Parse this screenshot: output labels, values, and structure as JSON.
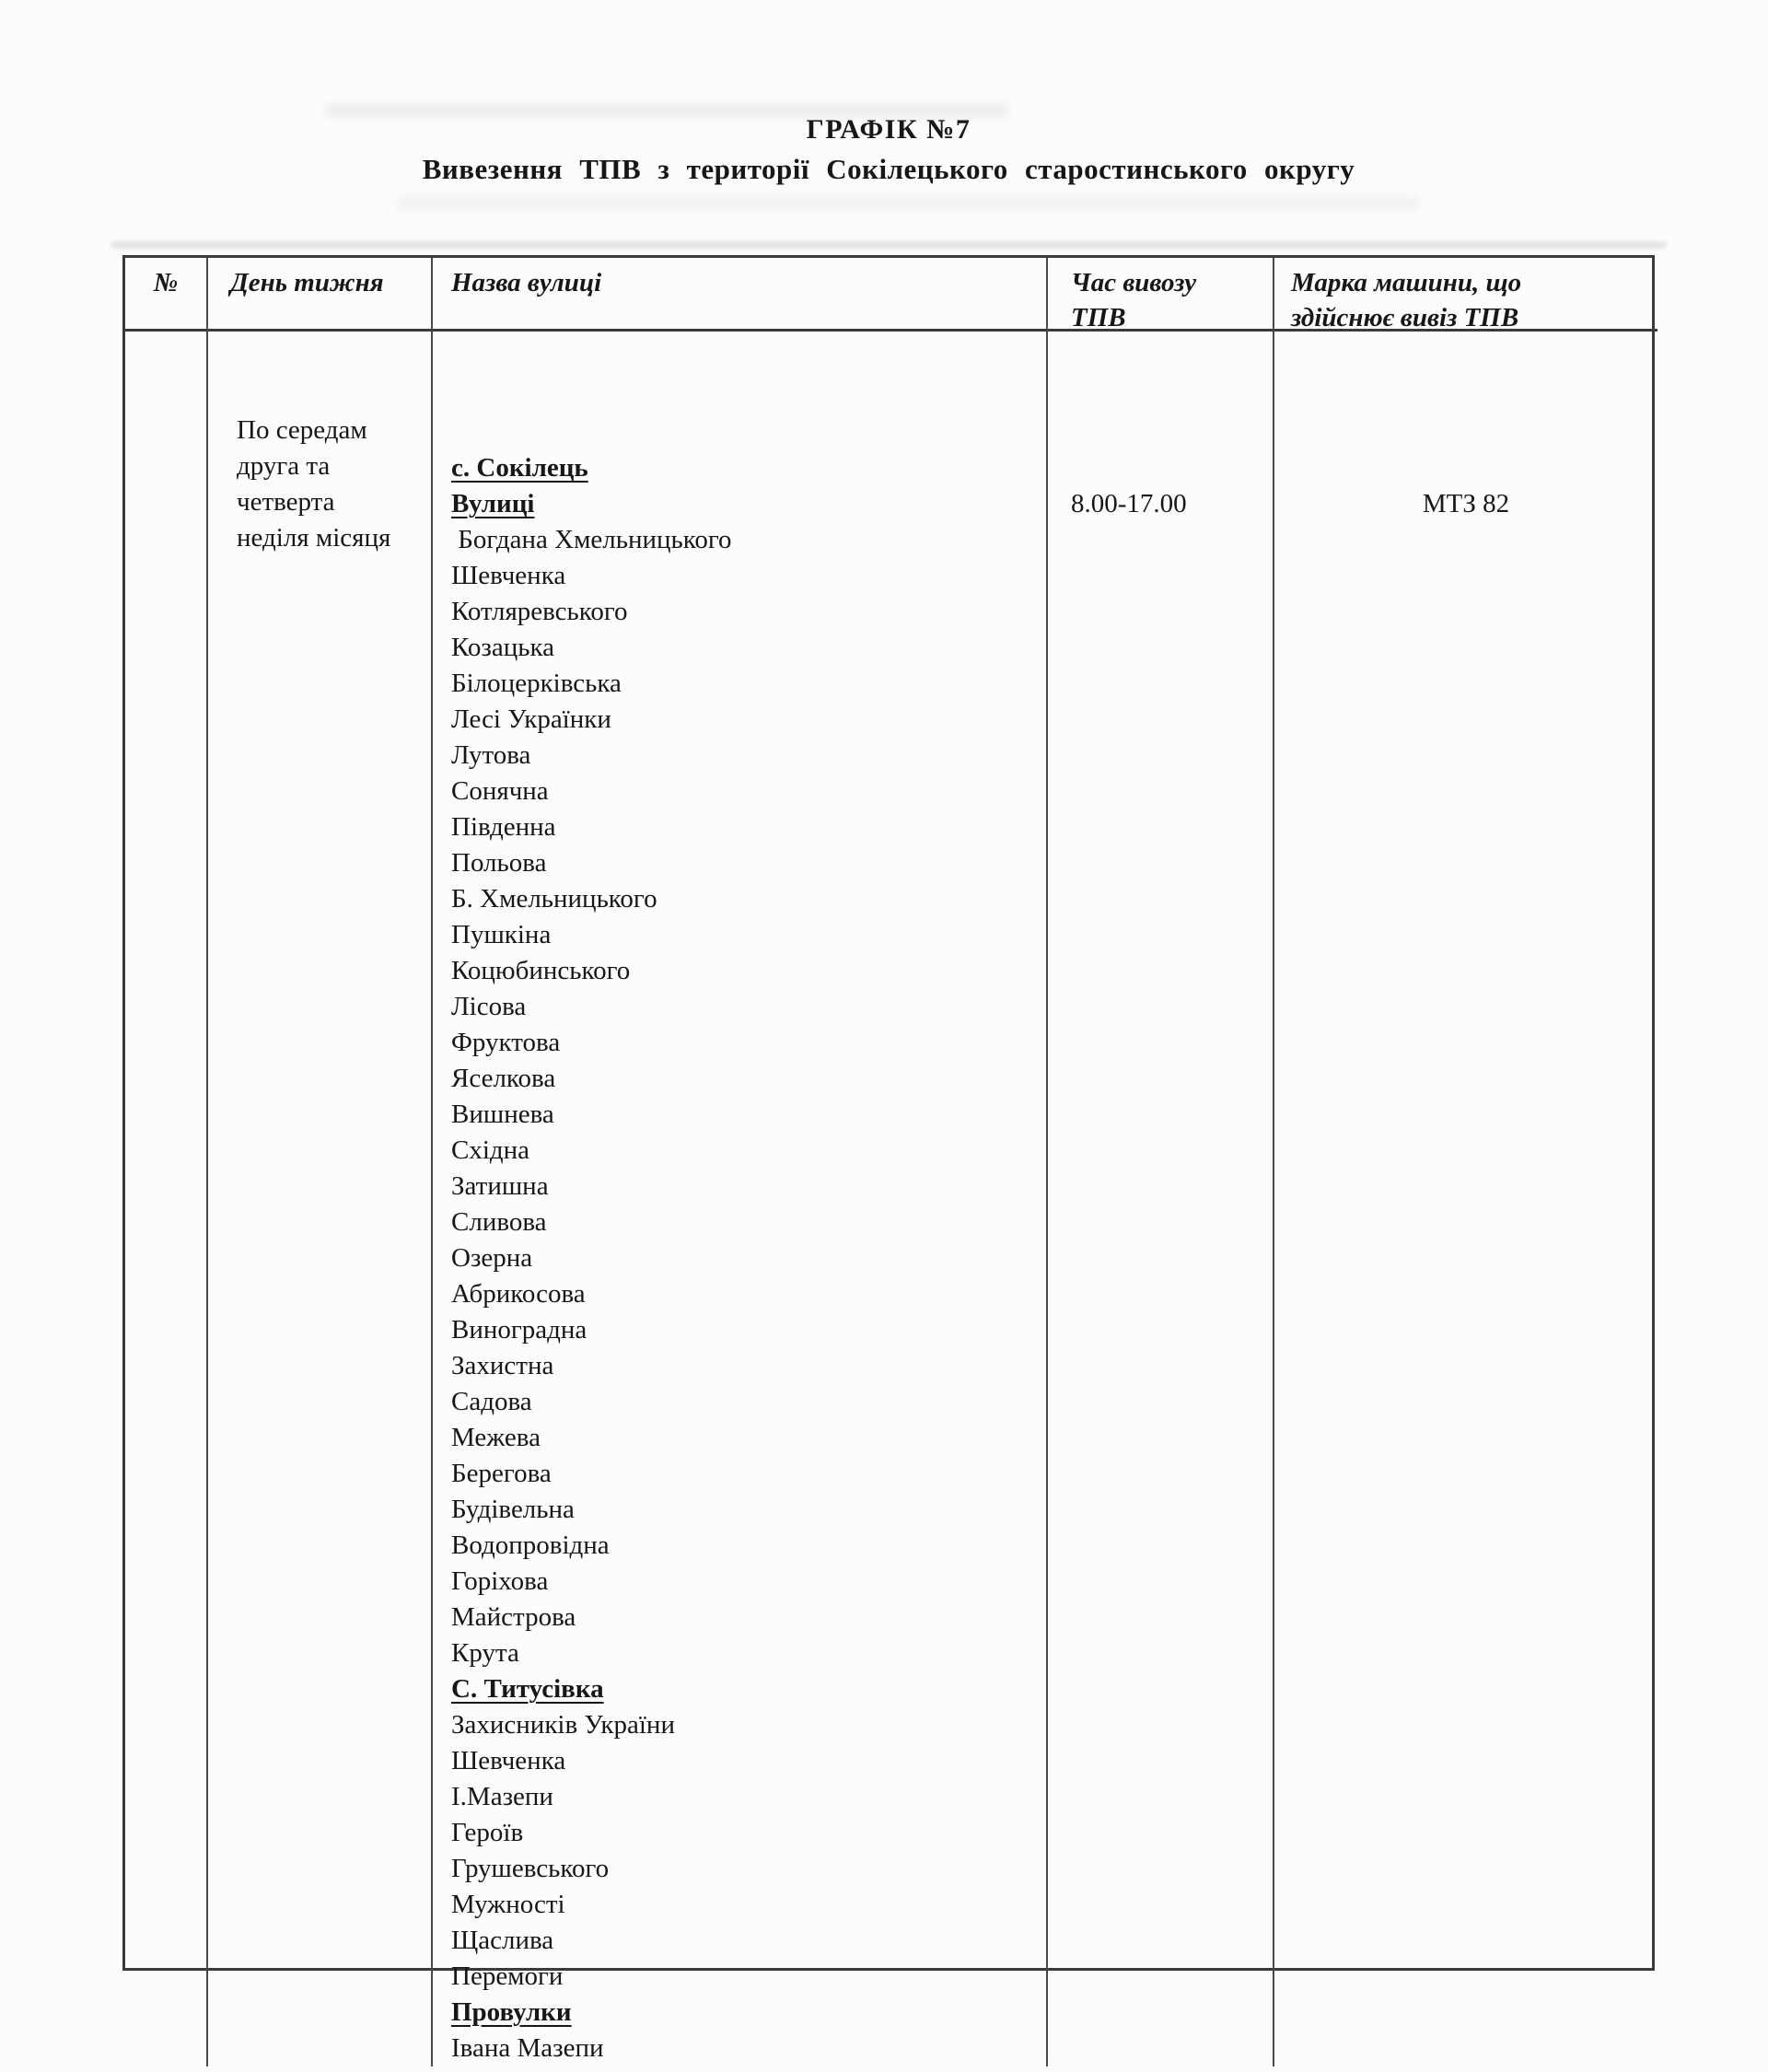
{
  "title": {
    "line1": "ГРАФІК №7",
    "line2": "Вивезення ТПВ з території Сокілецького старостинського округу"
  },
  "table": {
    "headers": {
      "num": "№",
      "day": "День тижня",
      "street": "Назва вулиці",
      "time_line1": "Час вивозу",
      "time_line2": "ТПВ",
      "machine_line1": "Марка машини, що",
      "machine_line2": "здійснює вивіз ТПВ"
    },
    "row": {
      "num": "",
      "day_lines": [
        "По середам",
        "друга та",
        "четверта",
        "неділя місяця"
      ],
      "time": "8.00-17.00",
      "machine": "МТЗ 82",
      "streets": [
        {
          "t": "с. Сокілець",
          "h": true
        },
        {
          "t": "Вулиці",
          "h": true
        },
        {
          "t": " Богдана Хмельницького"
        },
        {
          "t": "Шевченка"
        },
        {
          "t": "Котляревського"
        },
        {
          "t": "Козацька"
        },
        {
          "t": "Білоцерківська"
        },
        {
          "t": "Лесі Українки"
        },
        {
          "t": "Лутова"
        },
        {
          "t": "Сонячна"
        },
        {
          "t": "Південна"
        },
        {
          "t": "Польова"
        },
        {
          "t": "Б. Хмельницького"
        },
        {
          "t": "Пушкіна"
        },
        {
          "t": "Коцюбинського"
        },
        {
          "t": "Лісова"
        },
        {
          "t": "Фруктова"
        },
        {
          "t": "Яселкова"
        },
        {
          "t": "Вишнева"
        },
        {
          "t": "Східна"
        },
        {
          "t": "Затишна"
        },
        {
          "t": "Сливова"
        },
        {
          "t": "Озерна"
        },
        {
          "t": "Абрикосова"
        },
        {
          "t": "Виноградна"
        },
        {
          "t": "Захистна"
        },
        {
          "t": "Садова"
        },
        {
          "t": "Межева"
        },
        {
          "t": "Берегова"
        },
        {
          "t": "Будівельна"
        },
        {
          "t": "Водопровідна"
        },
        {
          "t": "Горіхова"
        },
        {
          "t": "Майстрова"
        },
        {
          "t": "Крута"
        },
        {
          "t": "С. Титусівка",
          "h": true
        },
        {
          "t": "Захисників України"
        },
        {
          "t": "Шевченка"
        },
        {
          "t": "І.Мазепи"
        },
        {
          "t": "Героїв"
        },
        {
          "t": "Грушевського"
        },
        {
          "t": "Мужності"
        },
        {
          "t": "Щаслива"
        },
        {
          "t": "Перемоги"
        },
        {
          "t": "Провулки",
          "h": true
        },
        {
          "t": "Івана Мазепи"
        }
      ]
    }
  }
}
